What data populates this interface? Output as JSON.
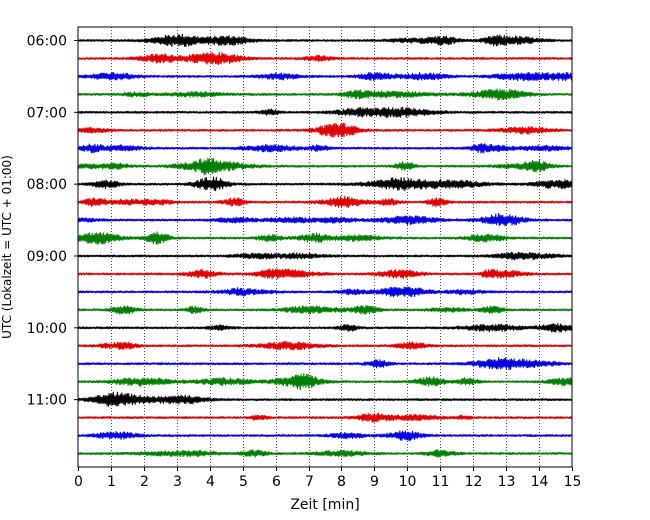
{
  "chart_data": {
    "type": "line",
    "title": "",
    "xlabel": "Zeit  [min]",
    "ylabel": "UTC (Lokalzeit = UTC + 01:00)",
    "xlim": [
      0,
      15
    ],
    "x_ticks": [
      0,
      1,
      2,
      3,
      4,
      5,
      6,
      7,
      8,
      9,
      10,
      11,
      12,
      13,
      14,
      15
    ],
    "x_tick_labels": [
      "0",
      "1",
      "2",
      "3",
      "4",
      "5",
      "6",
      "7",
      "8",
      "9",
      "10",
      "11",
      "12",
      "13",
      "14",
      "15"
    ],
    "grid": "vertical dotted at each minute",
    "y_tick_labels": [
      "06:00",
      "07:00",
      "08:00",
      "09:00",
      "10:00",
      "11:00"
    ],
    "y_tick_trace_index": [
      0,
      4,
      8,
      12,
      16,
      20
    ],
    "trace_minutes": 15,
    "colors": [
      "#000000",
      "#e00000",
      "#0000e0",
      "#007f00"
    ],
    "traces": [
      {
        "start": "06:00",
        "color": "#000000"
      },
      {
        "start": "06:15",
        "color": "#e00000"
      },
      {
        "start": "06:30",
        "color": "#0000e0"
      },
      {
        "start": "06:45",
        "color": "#007f00"
      },
      {
        "start": "07:00",
        "color": "#000000"
      },
      {
        "start": "07:15",
        "color": "#e00000"
      },
      {
        "start": "07:30",
        "color": "#0000e0"
      },
      {
        "start": "07:45",
        "color": "#007f00"
      },
      {
        "start": "08:00",
        "color": "#000000"
      },
      {
        "start": "08:15",
        "color": "#e00000"
      },
      {
        "start": "08:30",
        "color": "#0000e0"
      },
      {
        "start": "08:45",
        "color": "#007f00"
      },
      {
        "start": "09:00",
        "color": "#000000"
      },
      {
        "start": "09:15",
        "color": "#e00000"
      },
      {
        "start": "09:30",
        "color": "#0000e0"
      },
      {
        "start": "09:45",
        "color": "#007f00"
      },
      {
        "start": "10:00",
        "color": "#000000"
      },
      {
        "start": "10:15",
        "color": "#e00000"
      },
      {
        "start": "10:30",
        "color": "#0000e0"
      },
      {
        "start": "10:45",
        "color": "#007f00"
      },
      {
        "start": "11:00",
        "color": "#000000"
      },
      {
        "start": "11:15",
        "color": "#e00000"
      },
      {
        "start": "11:30",
        "color": "#0000e0"
      },
      {
        "start": "11:45",
        "color": "#007f00"
      }
    ]
  }
}
